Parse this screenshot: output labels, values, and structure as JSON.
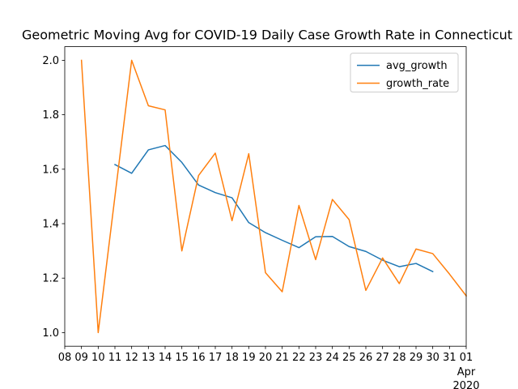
{
  "chart_data": {
    "type": "line",
    "title": "Geometric Moving Avg for COVID-19 Daily Case Growth Rate in Connecticut",
    "xlabel": "",
    "ylabel": "",
    "x_tick_labels": [
      "08",
      "09",
      "10",
      "11",
      "12",
      "13",
      "14",
      "15",
      "16",
      "17",
      "18",
      "19",
      "20",
      "21",
      "22",
      "23",
      "24",
      "25",
      "26",
      "27",
      "28",
      "29",
      "30",
      "31",
      "01"
    ],
    "x_tick_sublabel": {
      "month": "Apr",
      "year": "2020"
    },
    "xlim": [
      "2020-03-08",
      "2020-04-01"
    ],
    "ylim": [
      0.95,
      2.05
    ],
    "y_ticks": [
      1.0,
      1.2,
      1.4,
      1.6,
      1.8,
      2.0
    ],
    "y_tick_labels": [
      "1.0",
      "1.2",
      "1.4",
      "1.6",
      "1.8",
      "2.0"
    ],
    "grid": false,
    "legend": {
      "placement": "top-right"
    },
    "series": [
      {
        "name": "avg_growth",
        "color": "#1f77b4",
        "x": [
          "2020-03-11",
          "2020-03-12",
          "2020-03-13",
          "2020-03-14",
          "2020-03-15",
          "2020-03-16",
          "2020-03-17",
          "2020-03-18",
          "2020-03-19",
          "2020-03-20",
          "2020-03-21",
          "2020-03-22",
          "2020-03-23",
          "2020-03-24",
          "2020-03-25",
          "2020-03-26",
          "2020-03-27",
          "2020-03-28",
          "2020-03-29",
          "2020-03-30"
        ],
        "values": [
          1.617,
          1.585,
          1.671,
          1.687,
          1.625,
          1.542,
          1.514,
          1.495,
          1.404,
          1.367,
          1.339,
          1.312,
          1.352,
          1.353,
          1.316,
          1.298,
          1.266,
          1.242,
          1.254,
          1.224
        ]
      },
      {
        "name": "growth_rate",
        "color": "#ff7f0e",
        "x": [
          "2020-03-09",
          "2020-03-10",
          "2020-03-11",
          "2020-03-12",
          "2020-03-13",
          "2020-03-14",
          "2020-03-15",
          "2020-03-16",
          "2020-03-17",
          "2020-03-18",
          "2020-03-19",
          "2020-03-20",
          "2020-03-21",
          "2020-03-22",
          "2020-03-23",
          "2020-03-24",
          "2020-03-25",
          "2020-03-26",
          "2020-03-27",
          "2020-03-28",
          "2020-03-29",
          "2020-03-30",
          "2020-03-31",
          "2020-04-01"
        ],
        "values": [
          2.0,
          1.0,
          1.5,
          2.0,
          1.833,
          1.818,
          1.3,
          1.577,
          1.659,
          1.411,
          1.657,
          1.22,
          1.15,
          1.467,
          1.268,
          1.489,
          1.415,
          1.155,
          1.274,
          1.18,
          1.307,
          1.29,
          1.215,
          1.135
        ]
      }
    ]
  }
}
